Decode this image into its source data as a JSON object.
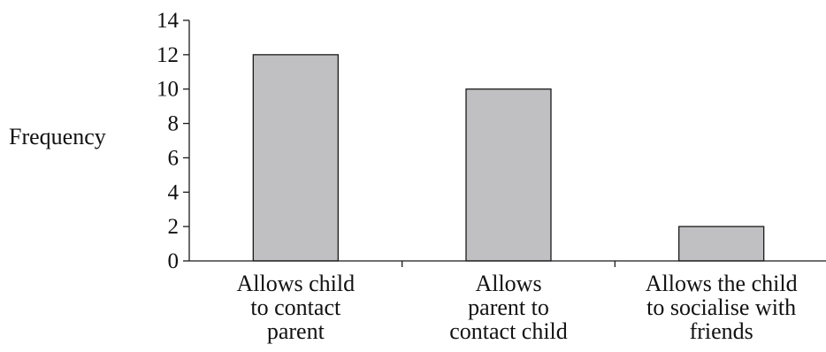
{
  "chart_data": {
    "type": "bar",
    "title": "",
    "xlabel": "",
    "ylabel": "Frequency",
    "categories": [
      [
        "Allows child",
        "to contact",
        "parent"
      ],
      [
        "Allows",
        "parent to",
        "contact child"
      ],
      [
        "Allows the child",
        "to socialise with",
        "friends"
      ]
    ],
    "values": [
      12,
      10,
      2
    ],
    "ylim": [
      0,
      14
    ],
    "yticks": [
      0,
      2,
      4,
      6,
      8,
      10,
      12,
      14
    ],
    "grid": false,
    "legend": "none",
    "colors": {
      "bar_fill": "#c0c0c2",
      "bar_stroke": "#1a1a1a",
      "axis": "#1a1a1a"
    }
  }
}
